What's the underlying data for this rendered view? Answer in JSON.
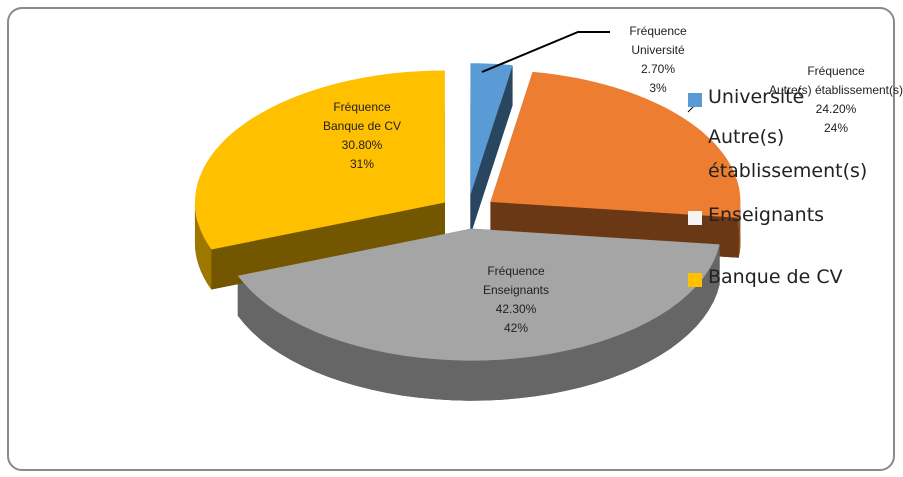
{
  "chart_data": {
    "type": "pie3d",
    "series_name": "Fréquence",
    "categories": [
      "Université",
      "Autre(s) établissement(s)",
      "Enseignants",
      "Banque de CV"
    ],
    "values": [
      2.7,
      24.2,
      42.3,
      30.8
    ],
    "value_labels": [
      [
        "2.70%",
        "3%"
      ],
      [
        "24.20%",
        "24%"
      ],
      [
        "42.30%",
        "42%"
      ],
      [
        "30.80%",
        "31%"
      ]
    ],
    "colors": [
      "#5b9bd5",
      "#ed7d31",
      "#a5a5a5",
      "#ffc000"
    ],
    "legend": "right"
  }
}
